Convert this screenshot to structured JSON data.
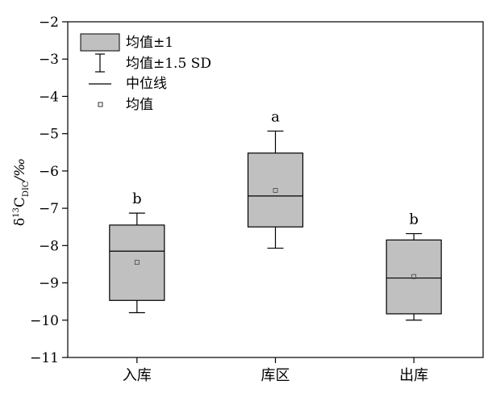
{
  "chart_data": {
    "type": "box",
    "ylabel_main": "δ",
    "ylabel_sup": "13",
    "ylabel_c": "C",
    "ylabel_sub": "DIC",
    "ylabel_unit": "/‰",
    "ylim": [
      -11,
      -2
    ],
    "yticks": [
      -2,
      -3,
      -4,
      -5,
      -6,
      -7,
      -8,
      -9,
      -10,
      -11
    ],
    "categories": [
      "入库",
      "库区",
      "出库"
    ],
    "boxes": [
      {
        "category": "入库",
        "whisker_low": -9.8,
        "q1": -9.47,
        "median": -8.15,
        "q3": -7.45,
        "whisker_high": -7.13,
        "mean": -8.45,
        "letter": "b"
      },
      {
        "category": "库区",
        "whisker_low": -8.07,
        "q1": -7.5,
        "median": -6.67,
        "q3": -5.52,
        "whisker_high": -4.93,
        "mean": -6.52,
        "letter": "a"
      },
      {
        "category": "出库",
        "whisker_low": -10.0,
        "q1": -9.83,
        "median": -8.87,
        "q3": -7.85,
        "whisker_high": -7.68,
        "mean": -8.83,
        "letter": "b"
      }
    ],
    "legend": [
      {
        "key": "box",
        "label": "均值±1"
      },
      {
        "key": "whisker",
        "label": "均值±1.5 SD"
      },
      {
        "key": "median",
        "label": "中位线"
      },
      {
        "key": "mean",
        "label": "均值"
      }
    ],
    "legend_placement": "top-left",
    "box_fill": "#c0c0c0",
    "grid": false
  }
}
